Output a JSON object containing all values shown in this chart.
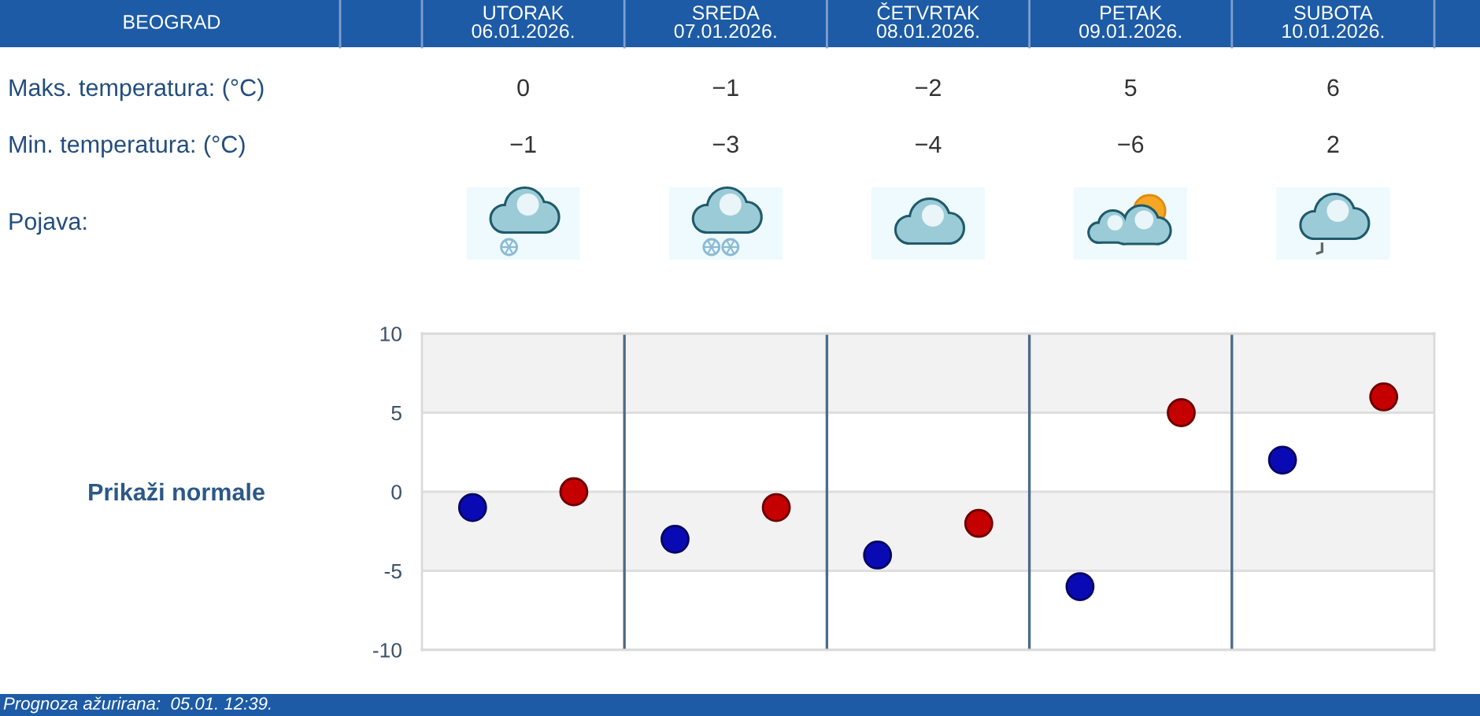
{
  "chart_data": {
    "type": "scatter",
    "title": "BEOGRAD",
    "categories": [
      null,
      null,
      null,
      null,
      null
    ],
    "series": [
      {
        "color": "#c40000",
        "values": [
          0,
          -1,
          -2,
          5,
          6
        ],
        "value_labels": [
          "0",
          "−1",
          "−2",
          "5",
          "6"
        ]
      },
      {
        "color": "#0a0ab4",
        "values": [
          -1,
          -3,
          -4,
          -6,
          2
        ],
        "value_labels": [
          "−1",
          "−3",
          "−4",
          "−6",
          "2"
        ]
      }
    ],
    "ylim": [
      -10,
      10
    ],
    "yticks": [
      -10,
      -5,
      0,
      5,
      10
    ],
    "grid": true,
    "marker": "circle",
    "bands": [
      {
        "axis": "y",
        "from": 5,
        "to": 10,
        "color": "#f2f2f2"
      },
      {
        "axis": "y",
        "from": -5,
        "to": 0,
        "color": "#f2f2f2"
      }
    ],
    "annotations": [
      "UTORAK\n06.01.2026.",
      "SREDA\n07.01.2026.",
      "ČETVRTAK\n08.01.2026.",
      "PETAK\n09.01.2026.",
      "SUBOTA\n10.01.2026.",
      "Maks. temperatura: (°C)",
      "Min. temperatura: (°C)",
      "Pojava:",
      "Prikaži normale",
      "Prognoza ažurirana:  05.01. 12:39."
    ]
  }
}
